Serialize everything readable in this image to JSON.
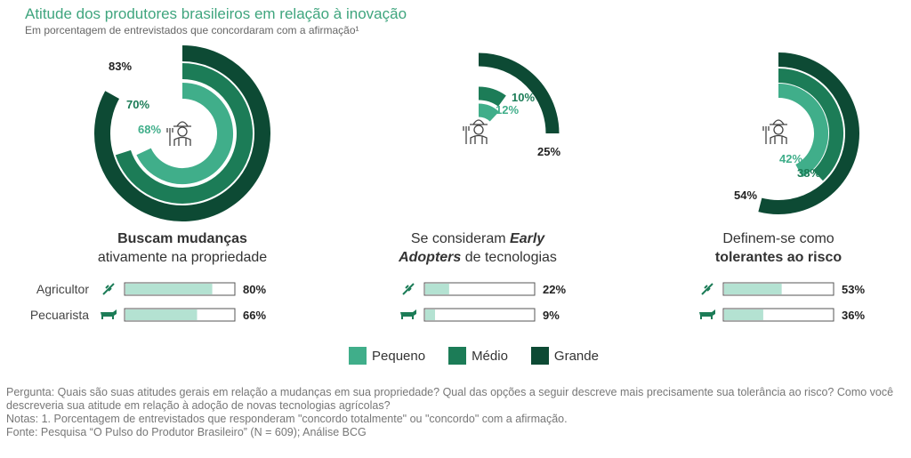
{
  "header": {
    "title": "Atitude dos produtores brasileiros em relação à inovação",
    "subtitle": "Em porcentagem de entrevistados que concordaram com a afirmação¹"
  },
  "colors": {
    "pequeno": "#40ae8a",
    "medio": "#1c7c57",
    "grande": "#0d4a34",
    "bar_fill": "#b4e2d2",
    "bar_border": "#555555",
    "title": "#3fa57e"
  },
  "chart_data": [
    {
      "type": "radial_bar",
      "title_line1": "Buscam mudanças",
      "title_line2": "ativamente na propriedade",
      "series": [
        {
          "name": "Pequeno",
          "value": 68,
          "label": "68%"
        },
        {
          "name": "Médio",
          "value": 70,
          "label": "70%"
        },
        {
          "name": "Grande",
          "value": 83,
          "label": "83%"
        }
      ],
      "bars": [
        {
          "category": "Agricultor",
          "value": 80,
          "label": "80%",
          "icon": "wheat-icon"
        },
        {
          "category": "Pecuarista",
          "value": 66,
          "label": "66%",
          "icon": "cow-icon"
        }
      ]
    },
    {
      "type": "radial_bar",
      "title_line1_prefix": "Se consideram ",
      "title_line1_em": "Early",
      "title_line2_em": "Adopters",
      "title_line2_suffix": " de tecnologias",
      "series": [
        {
          "name": "Pequeno",
          "value": 12,
          "label": "12%"
        },
        {
          "name": "Médio",
          "value": 10,
          "label": "10%"
        },
        {
          "name": "Grande",
          "value": 25,
          "label": "25%"
        }
      ],
      "bars": [
        {
          "category": "Agricultor",
          "value": 22,
          "label": "22%",
          "icon": "wheat-icon"
        },
        {
          "category": "Pecuarista",
          "value": 9,
          "label": "9%",
          "icon": "cow-icon"
        }
      ]
    },
    {
      "type": "radial_bar",
      "title_line1": "Definem-se como",
      "title_line2": "tolerantes ao risco",
      "series": [
        {
          "name": "Pequeno",
          "value": 42,
          "label": "42%"
        },
        {
          "name": "Médio",
          "value": 38,
          "label": "38%"
        },
        {
          "name": "Grande",
          "value": 54,
          "label": "54%"
        }
      ],
      "bars": [
        {
          "category": "Agricultor",
          "value": 53,
          "label": "53%",
          "icon": "wheat-icon"
        },
        {
          "category": "Pecuarista",
          "value": 36,
          "label": "36%",
          "icon": "cow-icon"
        }
      ]
    }
  ],
  "bar_row_labels": [
    "Agricultor",
    "Pecuarista"
  ],
  "legend": [
    {
      "label": "Pequeno",
      "color": "#40ae8a"
    },
    {
      "label": "Médio",
      "color": "#1c7c57"
    },
    {
      "label": "Grande",
      "color": "#0d4a34"
    }
  ],
  "footer": {
    "pergunta": "Pergunta: Quais são suas atitudes gerais em relação a mudanças em sua propriedade? Qual das opções a seguir descreve mais precisamente sua tolerância ao risco? Como você descreveria sua atitude em relação à adoção de novas tecnologias agrícolas?",
    "notas": "Notas: 1. Porcentagem de entrevistados que responderam \"concordo totalmente\" ou \"concordo\" com a afirmação.",
    "fonte": "Fonte: Pesquisa “O Pulso do Produtor Brasileiro” (N = 609); Análise BCG"
  }
}
